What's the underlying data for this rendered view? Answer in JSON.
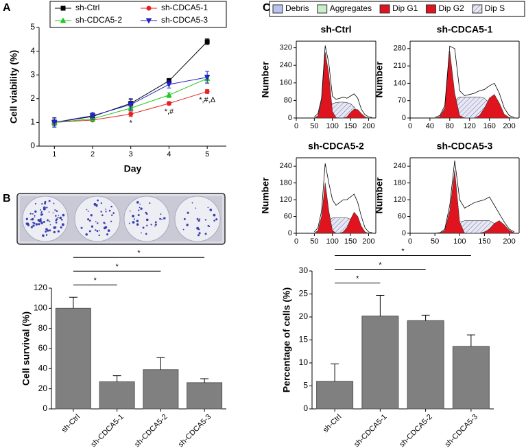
{
  "panels": [
    "A",
    "B",
    "C"
  ],
  "legend": [
    {
      "name": "Debris",
      "color": "#b9c3ee"
    },
    {
      "name": "Aggregates",
      "color": "#c8f0c8"
    },
    {
      "name": "Dip G1",
      "color": "#e0141e"
    },
    {
      "name": "Dip G2",
      "color": "#e0141e"
    },
    {
      "name": "Dip S",
      "color": "#6a6fa8",
      "fill": "hatch"
    }
  ],
  "chart_data": [
    {
      "type": "line",
      "xlabel": "Day",
      "ylabel": "Cell viability (%)",
      "x": [
        1,
        2,
        3,
        4,
        5
      ],
      "xlim": [
        0.6,
        5.5
      ],
      "xticks": [
        1,
        2,
        3,
        4,
        5
      ],
      "ylim": [
        0,
        5
      ],
      "yticks": [
        0,
        1,
        2,
        3,
        4,
        5
      ],
      "series": [
        {
          "name": "sh-Ctrl",
          "color": "#000000",
          "marker": "square",
          "values": [
            1.0,
            1.25,
            1.8,
            2.75,
            4.4
          ],
          "errors": [
            0.15,
            0.12,
            0.15,
            0.1,
            0.12
          ]
        },
        {
          "name": "sh-CDCA5-1",
          "color": "#e52222",
          "marker": "circle",
          "values": [
            1.0,
            1.1,
            1.35,
            1.8,
            2.3
          ],
          "errors": [
            0.1,
            0.05,
            0.1,
            0.07,
            0.08
          ]
        },
        {
          "name": "sh-CDCA5-2",
          "color": "#22c822",
          "marker": "triangle",
          "values": [
            1.0,
            1.15,
            1.6,
            2.15,
            2.85
          ],
          "errors": [
            0.1,
            0.1,
            0.1,
            0.1,
            0.15
          ]
        },
        {
          "name": "sh-CDCA5-3",
          "color": "#2222c8",
          "marker": "triangle-down",
          "values": [
            1.0,
            1.28,
            1.75,
            2.6,
            2.9
          ],
          "errors": [
            0.2,
            0.15,
            0.25,
            0.15,
            0.25
          ]
        }
      ],
      "annotations": [
        {
          "x": 3,
          "text": "*"
        },
        {
          "x": 4,
          "text": "*,#"
        },
        {
          "x": 5,
          "text": "*,#,Δ"
        }
      ]
    },
    {
      "type": "bar",
      "ylabel": "Cell survival (%)",
      "categories": [
        "sh-Ctrl",
        "sh-CDCA5-1",
        "sh-CDCA5-2",
        "sh-CDCA5-3"
      ],
      "values": [
        100,
        27,
        39,
        26
      ],
      "errors": [
        11,
        6,
        12,
        4
      ],
      "color": "#808080",
      "ylim": [
        0,
        120
      ],
      "yticks": [
        0,
        20,
        40,
        60,
        80,
        100,
        120
      ],
      "comparisons": [
        {
          "from": 0,
          "to": 1,
          "text": "*"
        },
        {
          "from": 0,
          "to": 2,
          "text": "*"
        },
        {
          "from": 0,
          "to": 3,
          "text": "*"
        }
      ]
    },
    {
      "type": "bar",
      "ylabel": "Percentage of cells (%)",
      "categories": [
        "sh-Ctrl",
        "sh-CDCA5-1",
        "sh-CDCA5-2",
        "sh-CDCA5-3"
      ],
      "values": [
        6,
        20.2,
        19.2,
        13.6
      ],
      "errors": [
        3.8,
        4.5,
        1.2,
        2.5
      ],
      "color": "#808080",
      "ylim": [
        0,
        30
      ],
      "yticks": [
        0,
        5,
        10,
        15,
        20,
        25,
        30
      ],
      "comparisons": [
        {
          "from": 0,
          "to": 1,
          "text": "*"
        },
        {
          "from": 0,
          "to": 2,
          "text": "*"
        },
        {
          "from": 0,
          "to": 3,
          "text": "*"
        }
      ]
    },
    {
      "type": "area",
      "title": "sh-Ctrl",
      "ylabel": "Number",
      "x": [
        50,
        60,
        70,
        80,
        90,
        100,
        110,
        120,
        130,
        140,
        150,
        160,
        170,
        180,
        190,
        200,
        210
      ],
      "xlim": [
        0,
        220
      ],
      "xticks": [
        0,
        50,
        100,
        150,
        200
      ],
      "ylim": [
        0,
        350
      ],
      "yticks": [
        0,
        80,
        160,
        240,
        320
      ],
      "values": [
        5,
        20,
        90,
        330,
        250,
        100,
        85,
        90,
        95,
        90,
        100,
        110,
        90,
        40,
        15,
        5,
        2
      ],
      "series": [
        {
          "name": "Dip S",
          "color": "#6a6fa8",
          "fill": "hatch",
          "values": [
            0,
            0,
            5,
            20,
            50,
            65,
            70,
            72,
            72,
            70,
            65,
            50,
            25,
            5,
            0,
            0,
            0
          ]
        },
        {
          "name": "Dip G1",
          "color": "#e0141e",
          "values": [
            0,
            10,
            80,
            300,
            200,
            30,
            2,
            0,
            0,
            0,
            0,
            0,
            0,
            0,
            0,
            0,
            0
          ]
        },
        {
          "name": "Dip G2",
          "color": "#e0141e",
          "values": [
            0,
            0,
            0,
            0,
            0,
            0,
            0,
            0,
            0,
            5,
            25,
            40,
            38,
            20,
            5,
            0,
            0
          ]
        }
      ]
    },
    {
      "type": "area",
      "title": "sh-CDCA5-1",
      "ylabel": "Number",
      "x": [
        50,
        60,
        70,
        80,
        90,
        100,
        110,
        120,
        130,
        140,
        150,
        160,
        170,
        180,
        190,
        200,
        210
      ],
      "xlim": [
        0,
        220
      ],
      "xticks": [
        0,
        40,
        80,
        120,
        160,
        200
      ],
      "ylim": [
        0,
        310
      ],
      "yticks": [
        0,
        70,
        140,
        210,
        280
      ],
      "values": [
        3,
        10,
        50,
        290,
        280,
        110,
        90,
        95,
        100,
        110,
        115,
        130,
        140,
        100,
        40,
        10,
        2
      ],
      "series": [
        {
          "name": "Dip S",
          "color": "#6a6fa8",
          "fill": "hatch",
          "values": [
            0,
            0,
            0,
            30,
            70,
            85,
            85,
            85,
            85,
            85,
            80,
            60,
            30,
            5,
            0,
            0,
            0
          ]
        },
        {
          "name": "Dip G1",
          "color": "#e0141e",
          "values": [
            0,
            5,
            40,
            270,
            100,
            10,
            0,
            0,
            0,
            0,
            0,
            0,
            0,
            0,
            0,
            0,
            0
          ]
        },
        {
          "name": "Dip G2",
          "color": "#e0141e",
          "values": [
            0,
            0,
            0,
            0,
            0,
            0,
            0,
            0,
            0,
            10,
            40,
            80,
            95,
            60,
            15,
            2,
            0
          ]
        }
      ]
    },
    {
      "type": "area",
      "title": "sh-CDCA5-2",
      "ylabel": "Number",
      "x": [
        50,
        60,
        70,
        80,
        90,
        100,
        110,
        120,
        130,
        140,
        150,
        160,
        170,
        180,
        190,
        200,
        210
      ],
      "xlim": [
        0,
        220
      ],
      "xticks": [
        0,
        50,
        100,
        150,
        200
      ],
      "ylim": [
        0,
        270
      ],
      "yticks": [
        0,
        60,
        120,
        180,
        240
      ],
      "values": [
        5,
        20,
        80,
        250,
        180,
        120,
        100,
        110,
        120,
        120,
        130,
        140,
        110,
        60,
        20,
        5,
        2
      ],
      "series": [
        {
          "name": "Dip S",
          "color": "#6a6fa8",
          "fill": "hatch",
          "values": [
            0,
            0,
            0,
            20,
            45,
            55,
            55,
            55,
            55,
            55,
            50,
            40,
            20,
            5,
            0,
            0,
            0
          ]
        },
        {
          "name": "Dip G1",
          "color": "#e0141e",
          "values": [
            0,
            10,
            60,
            180,
            80,
            10,
            0,
            0,
            0,
            0,
            0,
            0,
            0,
            0,
            0,
            0,
            0
          ]
        },
        {
          "name": "Dip G2",
          "color": "#e0141e",
          "values": [
            0,
            0,
            0,
            0,
            0,
            0,
            0,
            0,
            5,
            20,
            50,
            75,
            60,
            25,
            5,
            0,
            0
          ]
        }
      ]
    },
    {
      "type": "area",
      "title": "sh-CDCA5-3",
      "ylabel": "Number",
      "x": [
        50,
        60,
        70,
        80,
        90,
        100,
        110,
        120,
        130,
        140,
        150,
        160,
        170,
        180,
        190,
        200,
        210
      ],
      "xlim": [
        0,
        220
      ],
      "xticks": [
        0,
        50,
        100,
        150,
        200
      ],
      "ylim": [
        0,
        270
      ],
      "yticks": [
        0,
        60,
        120,
        180,
        240
      ],
      "values": [
        0,
        2,
        15,
        100,
        260,
        120,
        90,
        100,
        110,
        115,
        120,
        130,
        100,
        70,
        40,
        15,
        5
      ],
      "series": [
        {
          "name": "Dip S",
          "color": "#6a6fa8",
          "fill": "hatch",
          "values": [
            0,
            0,
            0,
            0,
            20,
            40,
            45,
            45,
            45,
            45,
            45,
            45,
            35,
            15,
            3,
            0,
            0
          ]
        },
        {
          "name": "Dip G1",
          "color": "#e0141e",
          "values": [
            0,
            0,
            10,
            80,
            225,
            40,
            0,
            0,
            0,
            0,
            0,
            0,
            0,
            0,
            0,
            0,
            0
          ]
        },
        {
          "name": "Dip G2",
          "color": "#e0141e",
          "values": [
            0,
            0,
            0,
            0,
            0,
            0,
            0,
            0,
            0,
            0,
            5,
            15,
            35,
            45,
            30,
            10,
            2
          ]
        }
      ]
    }
  ]
}
